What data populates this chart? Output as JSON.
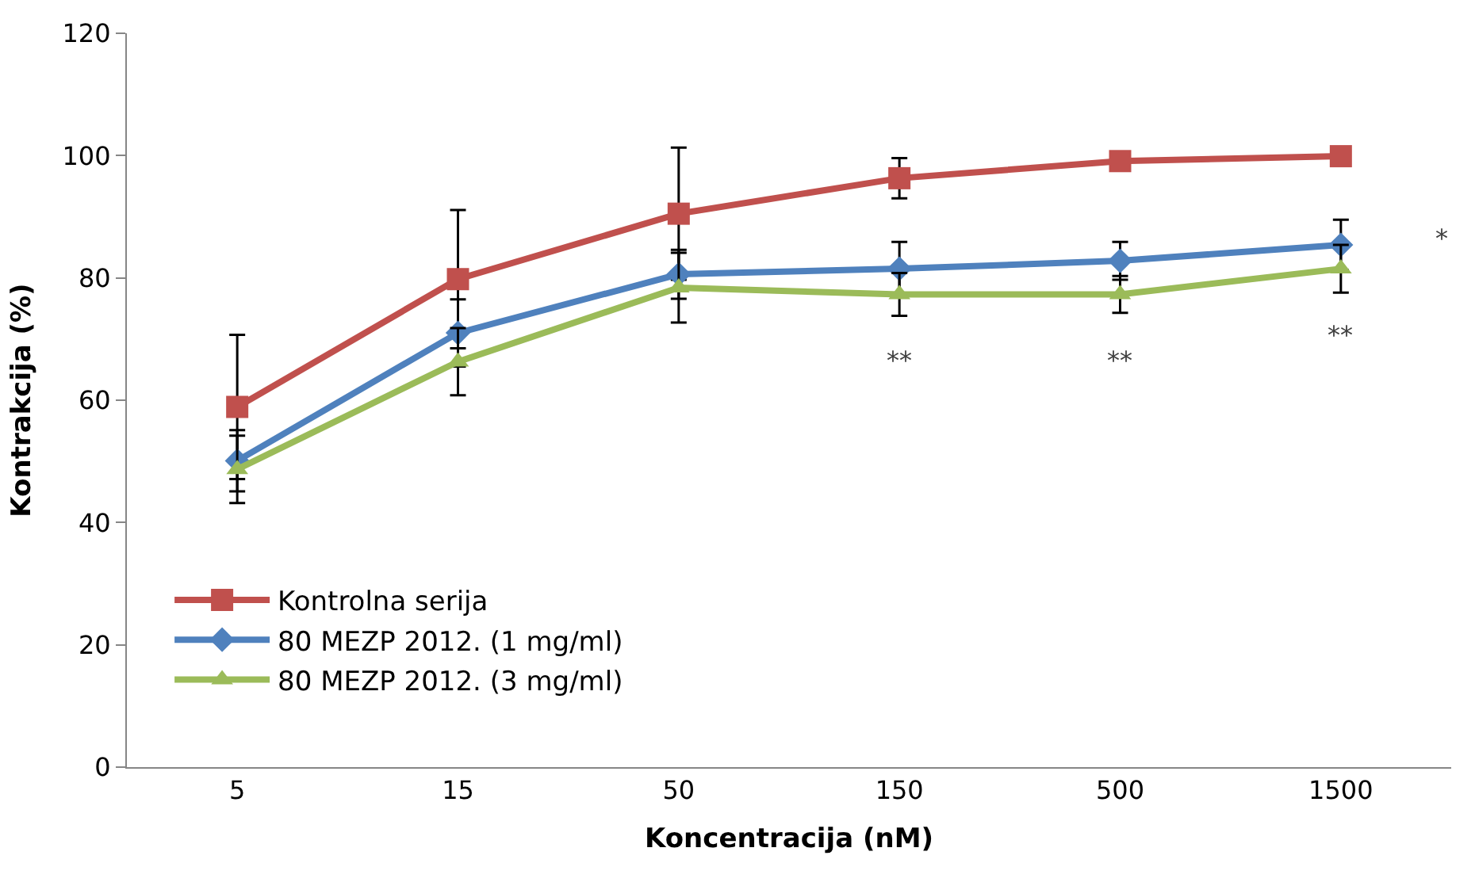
{
  "chart_data": {
    "type": "line",
    "xlabel": "Koncentracija (nM)",
    "ylabel": "Kontrakcija (%)",
    "categories": [
      "5",
      "15",
      "50",
      "150",
      "500",
      "1500"
    ],
    "series": [
      {
        "name": "Kontrolna serija",
        "color": "#c0504d",
        "marker": "square",
        "values": [
          58.9,
          79.8,
          90.5,
          96.3,
          99.1,
          99.9
        ],
        "errors": [
          11.8,
          11.3,
          10.8,
          3.3,
          null,
          null
        ]
      },
      {
        "name": "80 MEZP 2012. (1 mg/ml)",
        "color": "#4f81bd",
        "marker": "diamond",
        "values": [
          50.1,
          71.0,
          80.6,
          81.5,
          82.8,
          85.4
        ],
        "errors": [
          5,
          5.5,
          4,
          4.4,
          3.1,
          4.1
        ]
      },
      {
        "name": "80 MEZP 2012. (3 mg/ml)",
        "color": "#9bbb59",
        "marker": "triangle",
        "values": [
          48.7,
          66.3,
          78.4,
          77.3,
          77.3,
          81.5
        ],
        "errors": [
          5.5,
          5.5,
          5.7,
          3.5,
          3,
          3.9
        ]
      }
    ],
    "ylim": [
      0,
      120
    ],
    "yticks": [
      0,
      20,
      40,
      60,
      80,
      100,
      120
    ],
    "grid": false,
    "legend": "bottom left",
    "line_style": "solid",
    "annotations": [
      "**",
      "**",
      "**",
      "*"
    ]
  }
}
